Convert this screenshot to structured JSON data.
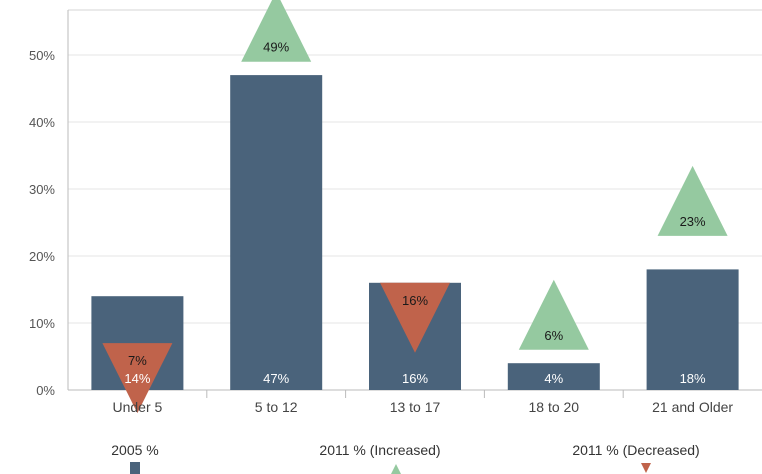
{
  "chart_data": {
    "type": "bar",
    "categories": [
      "Under 5",
      "5 to 12",
      "13 to 17",
      "18 to 20",
      "21 and Older"
    ],
    "ylim": [
      0,
      55
    ],
    "yticks": [
      0,
      10,
      20,
      30,
      40,
      50
    ],
    "ytick_labels": [
      "0%",
      "10%",
      "20%",
      "30%",
      "40%",
      "50%"
    ],
    "grid": true,
    "series": [
      {
        "name": "2005 %",
        "kind": "bar",
        "color": "#4a637b",
        "values": [
          14,
          47,
          16,
          4,
          18
        ],
        "labels": [
          "14%",
          "47%",
          "16%",
          "4%",
          "18%"
        ]
      },
      {
        "name": "2011 %",
        "kind": "marker",
        "values": [
          7,
          49,
          16,
          6,
          23
        ],
        "labels": [
          "7%",
          "49%",
          "16%",
          "6%",
          "23%"
        ],
        "direction": [
          "decreased",
          "increased",
          "decreased",
          "increased",
          "increased"
        ]
      }
    ],
    "legend": {
      "placement": "bottom",
      "items": [
        {
          "label": "2005 %",
          "marker": "bar",
          "color": "#4a637b"
        },
        {
          "label": "2011 % (Increased)",
          "marker": "triangle-up",
          "color": "#95c9a0"
        },
        {
          "label": "2011 % (Decreased)",
          "marker": "triangle-down",
          "color": "#c0634b"
        }
      ]
    },
    "colors": {
      "increased": "#95c9a0",
      "decreased": "#c0634b",
      "bar": "#4a637b",
      "grid": "#e6e6e6",
      "axis": "#bbbbbb"
    }
  }
}
